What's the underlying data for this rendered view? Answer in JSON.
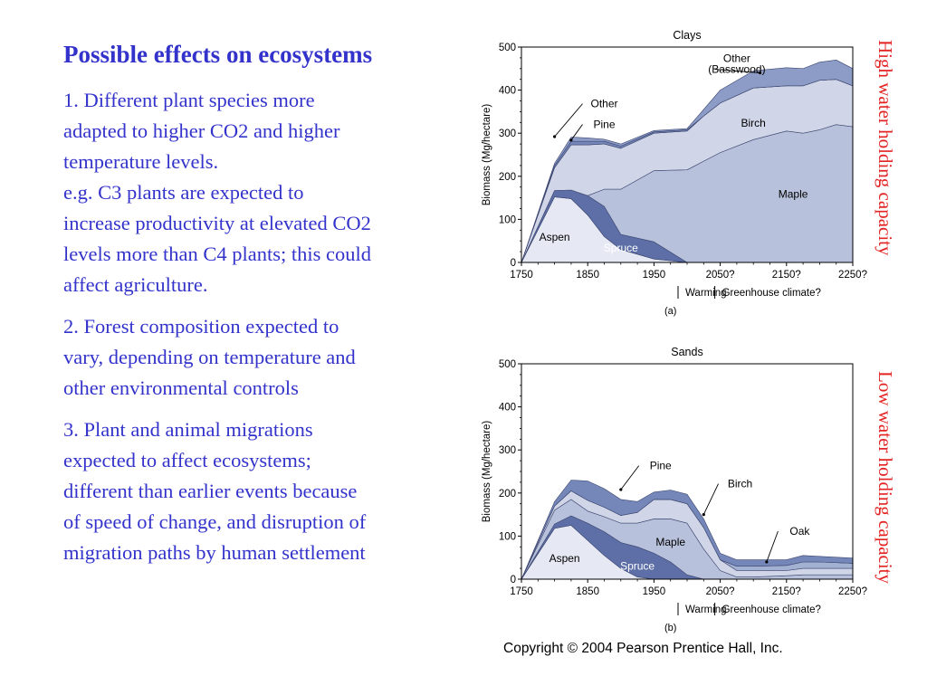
{
  "slide": {
    "title": "Possible effects on ecosystems",
    "paragraphs": [
      {
        "lines": [
          "1. Different plant species more",
          "adapted to higher CO2 and higher",
          "temperature levels.",
          "e.g. C3 plants are expected to",
          "increase productivity at elevated CO2",
          "levels more than C4 plants; this could",
          "affect agriculture."
        ]
      },
      {
        "lines": [
          "2. Forest composition expected to",
          "vary, depending on temperature and",
          "other environmental controls"
        ]
      },
      {
        "lines": [
          "3. Plant and animal migrations",
          "expected to affect ecosystems;",
          "different than earlier events because",
          "of speed of change, and disruption of",
          "migration paths by human settlement"
        ]
      }
    ],
    "side_label_top": "High water holding capacity",
    "side_label_bottom": "Low water holding capacity",
    "copyright": "Copyright © 2004 Pearson Prentice Hall, Inc."
  },
  "colors": {
    "text_blue": "#3333cc",
    "side_label_red": "#e32222",
    "aspen": "#e6e9f3",
    "spruce": "#5d6fa6",
    "maple": "#b8c1db",
    "birch": "#d0d6e7",
    "pine": "#7587b8",
    "other_band": "#8c9cc6",
    "oak": "#a2b0d2",
    "outline": "#3c4670"
  },
  "chart_data": [
    {
      "type": "area",
      "stacked": true,
      "title": "Clays",
      "ylabel": "Biomass (Mg/hectare)",
      "xlim": [
        1750,
        2250
      ],
      "ylim": [
        0,
        500
      ],
      "yticks": [
        0,
        100,
        200,
        300,
        400,
        500
      ],
      "xtick_labels": [
        "1750",
        "1850",
        "1950",
        "2050?",
        "2150?",
        "2250?"
      ],
      "x_positions": [
        1750,
        1850,
        1950,
        2050,
        2150,
        2250
      ],
      "timeline_labels": [
        "Warming",
        "Greenhouse climate?"
      ],
      "timeline_dividers": [
        2000,
        2050
      ],
      "caption": "(a)",
      "x": [
        1750,
        1800,
        1825,
        1850,
        1875,
        1900,
        1950,
        2000,
        2025,
        2050,
        2100,
        2150,
        2175,
        2200,
        2225,
        2250
      ],
      "series": [
        {
          "name": "Aspen",
          "color": "aspen",
          "values": [
            0,
            152,
            148,
            110,
            60,
            30,
            8,
            0,
            0,
            0,
            0,
            0,
            0,
            0,
            0,
            0
          ]
        },
        {
          "name": "Spruce",
          "color": "spruce",
          "values": [
            0,
            15,
            20,
            45,
            70,
            35,
            40,
            0,
            0,
            0,
            0,
            0,
            0,
            0,
            0,
            0
          ]
        },
        {
          "name": "Maple",
          "color": "maple",
          "values": [
            0,
            0,
            0,
            0,
            40,
            105,
            165,
            215,
            235,
            255,
            285,
            305,
            300,
            308,
            320,
            315
          ]
        },
        {
          "name": "Birch",
          "color": "birch",
          "values": [
            0,
            53,
            105,
            118,
            105,
            95,
            87,
            90,
            105,
            115,
            120,
            105,
            110,
            115,
            105,
            95
          ]
        },
        {
          "name": "Pine",
          "color": "pine",
          "values": [
            0,
            5,
            8,
            8,
            6,
            5,
            3,
            3,
            0,
            0,
            0,
            0,
            0,
            0,
            0,
            0
          ]
        },
        {
          "name": "Other (Basswood)",
          "color": "other_band",
          "values": [
            0,
            5,
            10,
            8,
            5,
            5,
            3,
            3,
            15,
            30,
            40,
            42,
            40,
            42,
            45,
            40
          ]
        }
      ],
      "labels": [
        {
          "text": "Aspen",
          "x": 1800,
          "y": 50,
          "inside": true
        },
        {
          "text": "Spruce",
          "x": 1900,
          "y": 25,
          "inside": true,
          "light": true
        },
        {
          "text": "Maple",
          "x": 2160,
          "y": 150,
          "inside": true
        },
        {
          "text": "Birch",
          "x": 2100,
          "y": 315,
          "inside": true
        },
        {
          "text": "Pine",
          "x": 1875,
          "y": 312,
          "leader_to": [
            1825,
            284
          ]
        },
        {
          "text": "Other",
          "x": 1875,
          "y": 360,
          "leader_to": [
            1800,
            292
          ]
        },
        {
          "text": "Other",
          "x": 2075,
          "y": 465
        },
        {
          "text": "(Basswood)",
          "x": 2075,
          "y": 440,
          "leader_to": [
            2110,
            440
          ]
        }
      ]
    },
    {
      "type": "area",
      "stacked": true,
      "title": "Sands",
      "ylabel": "Biomass (Mg/hectare)",
      "xlim": [
        1750,
        2250
      ],
      "ylim": [
        0,
        500
      ],
      "yticks": [
        0,
        100,
        200,
        300,
        400,
        500
      ],
      "xtick_labels": [
        "1750",
        "1850",
        "1950",
        "2050?",
        "2150?",
        "2250?"
      ],
      "x_positions": [
        1750,
        1850,
        1950,
        2050,
        2150,
        2250
      ],
      "timeline_labels": [
        "Warming",
        "Greenhouse climate?"
      ],
      "timeline_dividers": [
        2000,
        2050
      ],
      "caption": "(b)",
      "x": [
        1750,
        1800,
        1825,
        1850,
        1875,
        1900,
        1925,
        1950,
        1975,
        2000,
        2025,
        2050,
        2075,
        2100,
        2150,
        2175,
        2200,
        2250
      ],
      "series": [
        {
          "name": "Aspen",
          "color": "aspen",
          "values": [
            0,
            118,
            125,
            90,
            55,
            25,
            5,
            0,
            0,
            0,
            0,
            0,
            0,
            0,
            0,
            0,
            0,
            0
          ]
        },
        {
          "name": "Spruce",
          "color": "spruce",
          "values": [
            0,
            10,
            22,
            40,
            55,
            60,
            70,
            60,
            40,
            10,
            0,
            0,
            0,
            0,
            0,
            0,
            0,
            0
          ]
        },
        {
          "name": "Maple",
          "color": "maple",
          "values": [
            0,
            32,
            38,
            28,
            35,
            45,
            55,
            80,
            100,
            120,
            70,
            20,
            5,
            5,
            8,
            10,
            10,
            10
          ]
        },
        {
          "name": "Birch",
          "color": "birch",
          "values": [
            0,
            10,
            20,
            25,
            22,
            18,
            25,
            45,
            45,
            45,
            50,
            25,
            15,
            15,
            12,
            15,
            15,
            15
          ]
        },
        {
          "name": "Oak",
          "color": "oak",
          "values": [
            0,
            0,
            0,
            0,
            0,
            0,
            0,
            0,
            0,
            0,
            0,
            0,
            10,
            10,
            12,
            15,
            15,
            12
          ]
        },
        {
          "name": "Pine",
          "color": "pine",
          "values": [
            0,
            10,
            25,
            45,
            43,
            37,
            25,
            17,
            22,
            22,
            20,
            15,
            15,
            15,
            13,
            15,
            13,
            12
          ]
        }
      ],
      "labels": [
        {
          "text": "Aspen",
          "x": 1815,
          "y": 40,
          "inside": true
        },
        {
          "text": "Spruce",
          "x": 1925,
          "y": 22,
          "inside": true,
          "light": true
        },
        {
          "text": "Maple",
          "x": 1975,
          "y": 78,
          "inside": true
        },
        {
          "text": "Pine",
          "x": 1960,
          "y": 255,
          "leader_to": [
            1900,
            208
          ]
        },
        {
          "text": "Birch",
          "x": 2080,
          "y": 213,
          "leader_to": [
            2025,
            150
          ]
        },
        {
          "text": "Oak",
          "x": 2170,
          "y": 103,
          "leader_to": [
            2120,
            40
          ]
        }
      ]
    }
  ]
}
